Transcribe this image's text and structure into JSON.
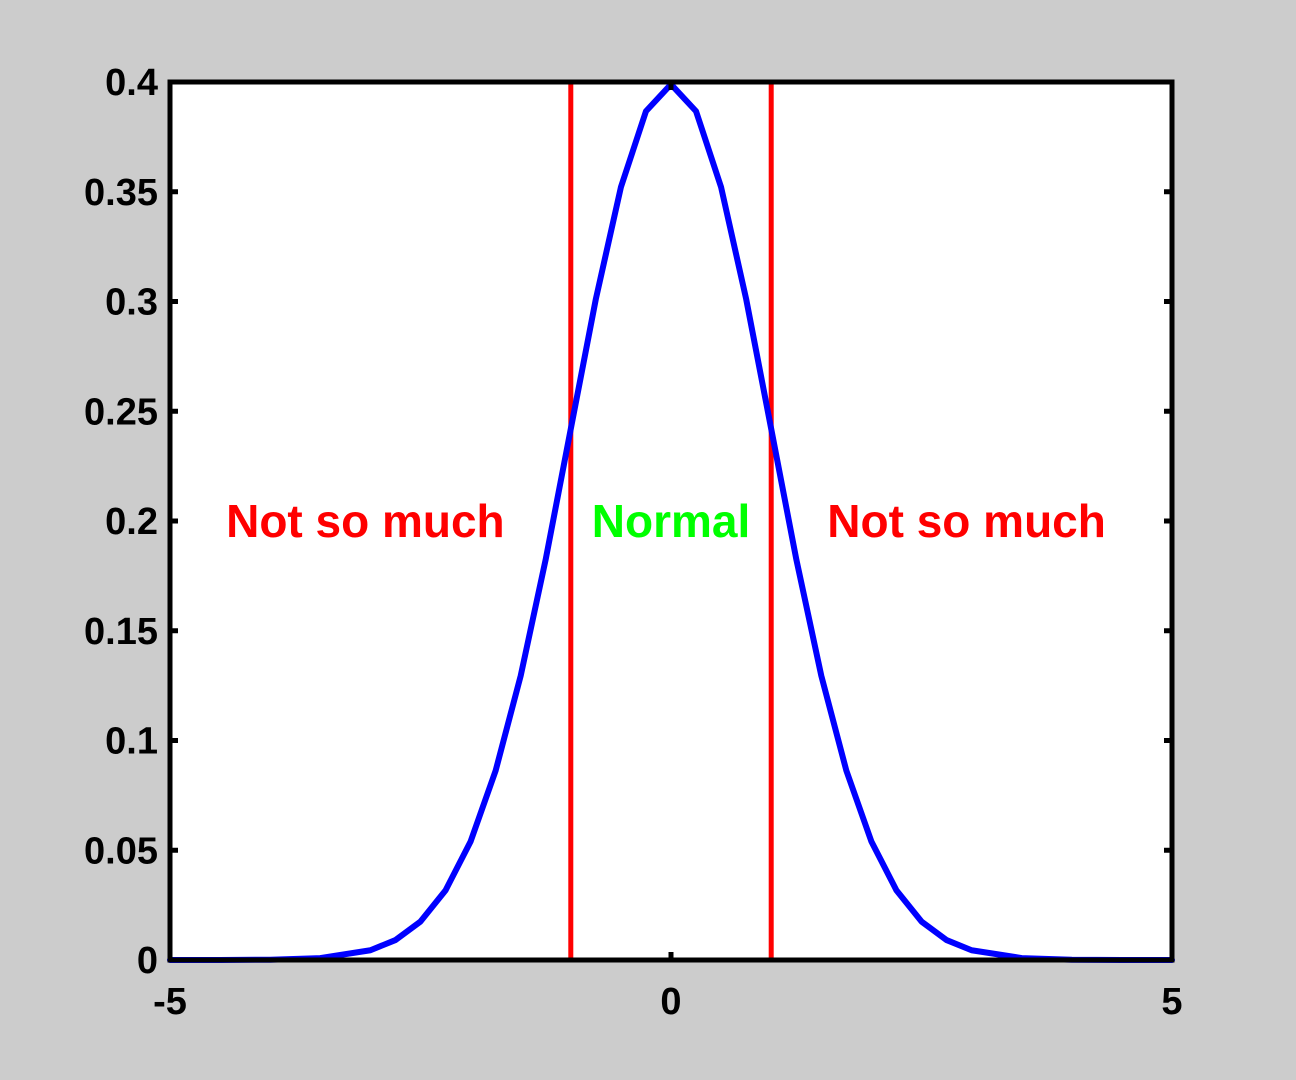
{
  "chart_data": {
    "type": "line",
    "title": "",
    "xlabel": "",
    "ylabel": "",
    "xlim": [
      -5,
      5
    ],
    "ylim": [
      0,
      0.4
    ],
    "grid": false,
    "x_ticks": [
      -5,
      0,
      5
    ],
    "x_tick_labels": [
      "-5",
      "0",
      "5"
    ],
    "y_ticks": [
      0,
      0.05,
      0.1,
      0.15,
      0.2,
      0.25,
      0.3,
      0.35,
      0.4
    ],
    "y_tick_labels": [
      "0",
      "0.05",
      "0.1",
      "0.15",
      "0.2",
      "0.25",
      "0.3",
      "0.35",
      "0.4"
    ],
    "series": [
      {
        "color": "#0000ff",
        "x": [
          -5,
          -4.5,
          -4,
          -3.5,
          -3,
          -2.75,
          -2.5,
          -2.25,
          -2,
          -1.75,
          -1.5,
          -1.25,
          -1,
          -0.75,
          -0.5,
          -0.25,
          0,
          0.25,
          0.5,
          0.75,
          1,
          1.25,
          1.5,
          1.75,
          2,
          2.25,
          2.5,
          2.75,
          3,
          3.5,
          4,
          4.5,
          5
        ],
        "y": [
          1.5e-06,
          1.6e-05,
          0.000134,
          0.000873,
          0.004432,
          0.009094,
          0.017528,
          0.03174,
          0.053991,
          0.086277,
          0.129518,
          0.182649,
          0.241971,
          0.301137,
          0.352065,
          0.386668,
          0.398942,
          0.386668,
          0.352065,
          0.301137,
          0.241971,
          0.182649,
          0.129518,
          0.086277,
          0.053991,
          0.03174,
          0.017528,
          0.009094,
          0.004432,
          0.000873,
          0.000134,
          1.6e-05,
          1.5e-06
        ]
      }
    ],
    "vertical_lines": [
      {
        "x": -1,
        "color": "#ff0000"
      },
      {
        "x": 1,
        "color": "#ff0000"
      }
    ],
    "annotations": [
      {
        "text": "Not so much",
        "x": -3.05,
        "y": 0.2,
        "color": "#ff0000"
      },
      {
        "text": "Normal",
        "x": 0,
        "y": 0.2,
        "color": "#00ff00"
      },
      {
        "text": "Not so much",
        "x": 2.95,
        "y": 0.2,
        "color": "#ff0000"
      }
    ]
  },
  "colors": {
    "background": "#cccccc",
    "plot_area": "#ffffff",
    "axes": "#000000"
  }
}
